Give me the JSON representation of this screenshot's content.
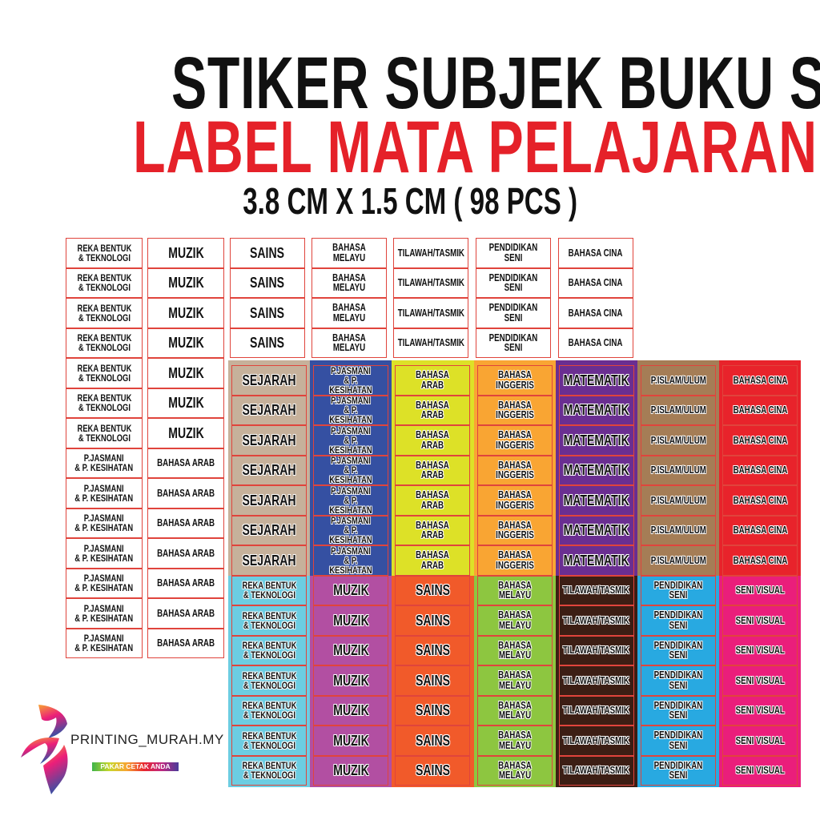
{
  "header": {
    "title": "STIKER SUBJEK BUKU SEKOLAH",
    "subtitle": "LABEL MATA PELAJARAN",
    "size_info": "3.8 CM X 1.5 CM ( 98 PCS )"
  },
  "colors": {
    "title": "#111111",
    "subtitle": "#e52129",
    "cell_border": "#e0443c"
  },
  "white_left_columns": [
    {
      "groups": [
        {
          "label": "REKA BENTUK\n& TEKNOLOGI",
          "count": 7
        },
        {
          "label": "P.JASMANI\n& P. KESIHATAN",
          "count": 7
        }
      ]
    },
    {
      "groups": [
        {
          "label": "MUZIK",
          "count": 7
        },
        {
          "label": "BAHASA ARAB",
          "count": 7
        }
      ]
    }
  ],
  "white_top_columns": [
    {
      "label": "SAINS",
      "count": 4
    },
    {
      "label": "BAHASA MELAYU",
      "count": 4
    },
    {
      "label": "TILAWAH/TASMIK",
      "count": 4
    },
    {
      "label": "PENDIDIKAN SENI",
      "count": 4
    },
    {
      "label": "BAHASA CINA",
      "count": 4
    }
  ],
  "colored_upper": [
    {
      "label": "SEJARAH",
      "color": "#c6b19b",
      "count": 7
    },
    {
      "label": "P.JASMANI\n& P. KESIHATAN",
      "color": "#3550a2",
      "count": 7
    },
    {
      "label": "BAHASA ARAB",
      "color": "#dde127",
      "count": 7
    },
    {
      "label": "BAHASA INGGERIS",
      "color": "#f9a533",
      "count": 7
    },
    {
      "label": "MATEMATIK",
      "color": "#6a2e91",
      "count": 7
    },
    {
      "label": "P.ISLAM/ULUM",
      "color": "#a57d56",
      "count": 7
    },
    {
      "label": "BAHASA CINA",
      "color": "#e8232b",
      "count": 7
    }
  ],
  "colored_lower": [
    {
      "label": "REKA BENTUK\n& TEKNOLOGI",
      "color": "#6ccde2",
      "count": 7
    },
    {
      "label": "MUZIK",
      "color": "#b24fa2",
      "count": 7
    },
    {
      "label": "SAINS",
      "color": "#f15a2a",
      "count": 7
    },
    {
      "label": "BAHASA MELAYU",
      "color": "#8dc640",
      "count": 7
    },
    {
      "label": "TILAWAH/TASMIK",
      "color": "#3c1e14",
      "count": 7
    },
    {
      "label": "PENDIDIKAN SENI",
      "color": "#28a9e1",
      "count": 7
    },
    {
      "label": "SENI VISUAL",
      "color": "#ea1e7b",
      "count": 7
    }
  ],
  "logo": {
    "name": "PRINTING_MURAH.MY",
    "tagline": "PAKAR CETAK ANDA"
  }
}
